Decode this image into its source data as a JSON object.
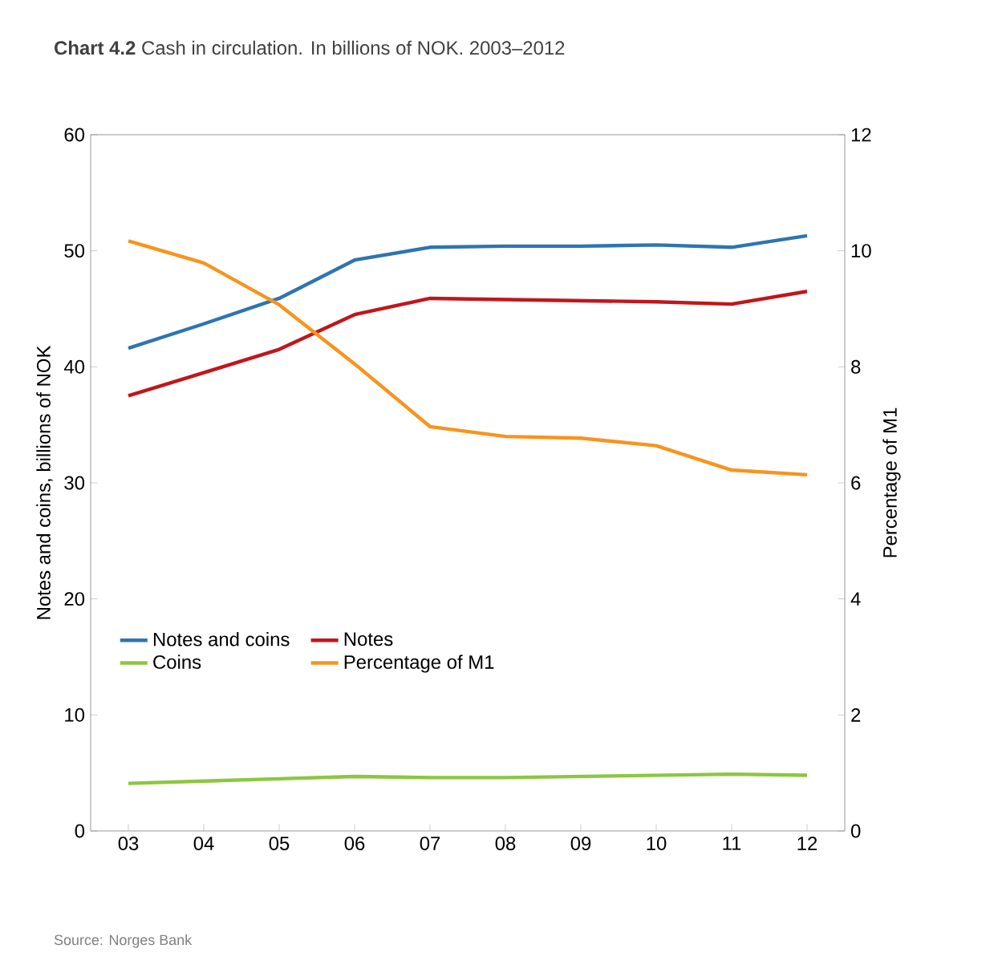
{
  "chart_data": {
    "type": "line",
    "title": "**Chart 4.2**  Cash in circulation. In billions of NOK. 2003–2012",
    "categories": [
      "03",
      "04",
      "05",
      "06",
      "07",
      "08",
      "09",
      "10",
      "11",
      "12"
    ],
    "ylabel": "Notes and coins, billions of NOK",
    "y2label": "Percentage of M1",
    "ylim": [
      0,
      60
    ],
    "yticks": [
      0,
      10,
      20,
      30,
      40,
      50,
      60
    ],
    "y2lim": [
      0,
      12
    ],
    "y2ticks": [
      0,
      2,
      4,
      6,
      8,
      10,
      12
    ],
    "grid": false,
    "legend": "bottom left",
    "marker": "none",
    "line_style": "solid",
    "series": [
      {
        "name": "Notes and coins",
        "color": "#2e75b0",
        "values": [
          41.6,
          43.7,
          45.9,
          49.2,
          50.3,
          50.4,
          50.4,
          50.5,
          50.3,
          51.3
        ]
      },
      {
        "name": "Notes",
        "color": "#c0161c",
        "values": [
          37.5,
          39.5,
          41.5,
          44.5,
          45.9,
          45.8,
          45.7,
          45.6,
          45.4,
          46.5
        ]
      },
      {
        "name": "Coins",
        "color": "#8dc63f",
        "values": [
          4.1,
          4.3,
          4.5,
          4.7,
          4.6,
          4.6,
          4.7,
          4.8,
          4.9,
          4.8
        ]
      },
      {
        "name": "Percentage of M1",
        "color": "#f7941d",
        "axis": "y2",
        "values": [
          10.17,
          9.79,
          9.07,
          8.05,
          6.97,
          6.8,
          6.77,
          6.64,
          6.22,
          6.14
        ]
      }
    ],
    "annotations": [
      "Source: Norges Bank"
    ]
  }
}
